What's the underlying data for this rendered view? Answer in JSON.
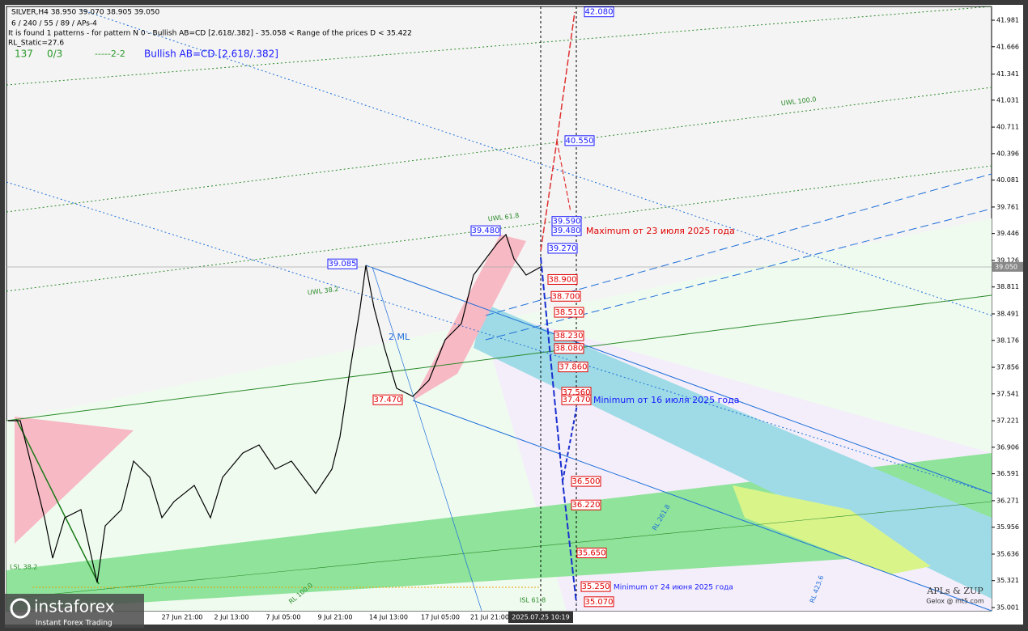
{
  "header": {
    "symbol_line": "SILVER,H4  38.950 39.070 38.905 39.050",
    "settings_line": "6 / 240 / 55 / 89 / APs-4",
    "pattern_line": "It is found 1 patterns  -  for pattern N 0 - Bullish AB=CD [2.618/.382] - 35.058 < Range of the prices D < 35.422",
    "static_line": "RL_Static=27.6",
    "count": "137",
    "ratio": "0/3",
    "code": "-----2-2",
    "pattern_name": "Bullish AB=CD [2.618/.382]"
  },
  "price_axis": [
    "41.981",
    "41.666",
    "41.341",
    "41.031",
    "40.711",
    "40.396",
    "40.081",
    "39.761",
    "39.446",
    "39.126",
    "38.811",
    "38.491",
    "38.176",
    "37.856",
    "37.541",
    "37.221",
    "36.906",
    "36.591",
    "36.271",
    "35.956",
    "35.636",
    "35.321",
    "35.001"
  ],
  "current_price": "39.050",
  "time_axis": [
    "27 Jun 21:00",
    "2 Jul 13:00",
    "7 Jul 05:00",
    "9 Jul 21:00",
    "14 Jul 13:00",
    "17 Jul 05:00",
    "21 Jul 21:00"
  ],
  "current_time": "2025.07.25 10:19",
  "forecast_levels": [
    {
      "price": "42.080",
      "color": "#1a1aff"
    },
    {
      "price": "40.550",
      "color": "#1a1aff"
    },
    {
      "price": "39.590",
      "color": "#1a1aff"
    },
    {
      "price": "39.480",
      "color": "#1a1aff"
    },
    {
      "price": "39.270",
      "color": "#1a1aff"
    },
    {
      "price": "38.900",
      "color": "#e00000"
    },
    {
      "price": "38.700",
      "color": "#e00000"
    },
    {
      "price": "38.510",
      "color": "#e00000"
    },
    {
      "price": "38.230",
      "color": "#e00000"
    },
    {
      "price": "38.080",
      "color": "#e00000"
    },
    {
      "price": "37.860",
      "color": "#e00000"
    },
    {
      "price": "37.560",
      "color": "#e00000"
    },
    {
      "price": "37.470",
      "color": "#e00000"
    },
    {
      "price": "36.500",
      "color": "#e00000"
    },
    {
      "price": "36.220",
      "color": "#e00000"
    },
    {
      "price": "35.650",
      "color": "#e00000"
    },
    {
      "price": "35.250",
      "color": "#e00000"
    },
    {
      "price": "35.070",
      "color": "#e00000"
    }
  ],
  "pivot_labels": [
    {
      "price": "39.480",
      "color": "#1a1aff"
    },
    {
      "price": "39.085",
      "color": "#1a1aff"
    },
    {
      "price": "37.470",
      "color": "#e00000"
    }
  ],
  "annotations": {
    "maximum": "Maximum от 23 июля 2025 года",
    "minimum_july": "Minimum от 16 июля 2025 года",
    "minimum_june": "Minimum от 24 июня 2025 года",
    "uwl_100": "UWL 100.0",
    "uwl_618": "UWL 61.8",
    "uwl_382": "UWL 38.2",
    "lsl_382": "LSL 38.2",
    "isl_618": "ISL 61.8",
    "rl_100": "RL 100.0",
    "rl_2618": "RL 261.8",
    "rl_4236": "RL 423.6",
    "ml": "2 ML"
  },
  "footer": {
    "brand": "APLs & ZUP",
    "site": "Gelox @ mt5.com",
    "logo": "instaforex",
    "logo_tag": "Instant Forex Trading"
  }
}
